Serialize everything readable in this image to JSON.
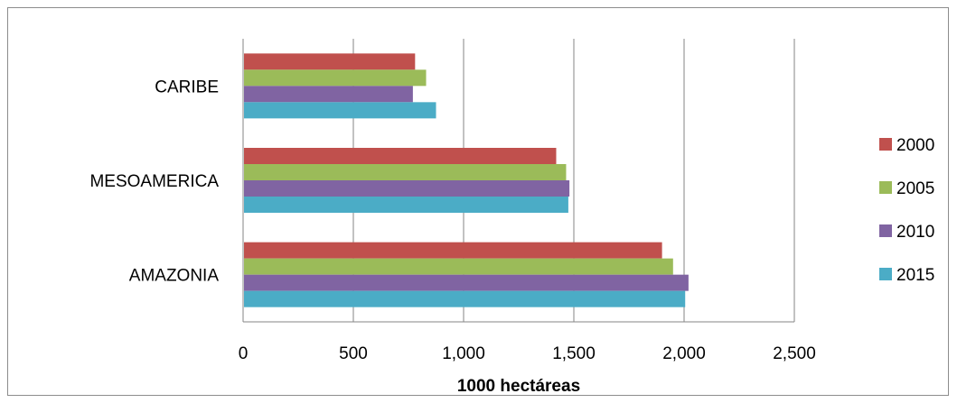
{
  "chart_data": {
    "type": "bar",
    "orientation": "horizontal",
    "categories": [
      "CARIBE",
      "MESOAMERICA",
      "AMAZONIA"
    ],
    "series": [
      {
        "name": "2000",
        "color": "#C0504D",
        "values": [
          780,
          1420,
          1900
        ]
      },
      {
        "name": "2005",
        "color": "#9BBB59",
        "values": [
          830,
          1465,
          1950
        ]
      },
      {
        "name": "2010",
        "color": "#8064A2",
        "values": [
          770,
          1480,
          2020
        ]
      },
      {
        "name": "2015",
        "color": "#4BACC6",
        "values": [
          875,
          1475,
          2005
        ]
      }
    ],
    "xlabel": "1000 hectáreas",
    "ylabel": "",
    "xlim": [
      0,
      2500
    ],
    "x_ticks": [
      "0",
      "500",
      "1,000",
      "1,500",
      "2,000",
      "2,500"
    ],
    "grid": "vertical",
    "legend_position": "right"
  }
}
